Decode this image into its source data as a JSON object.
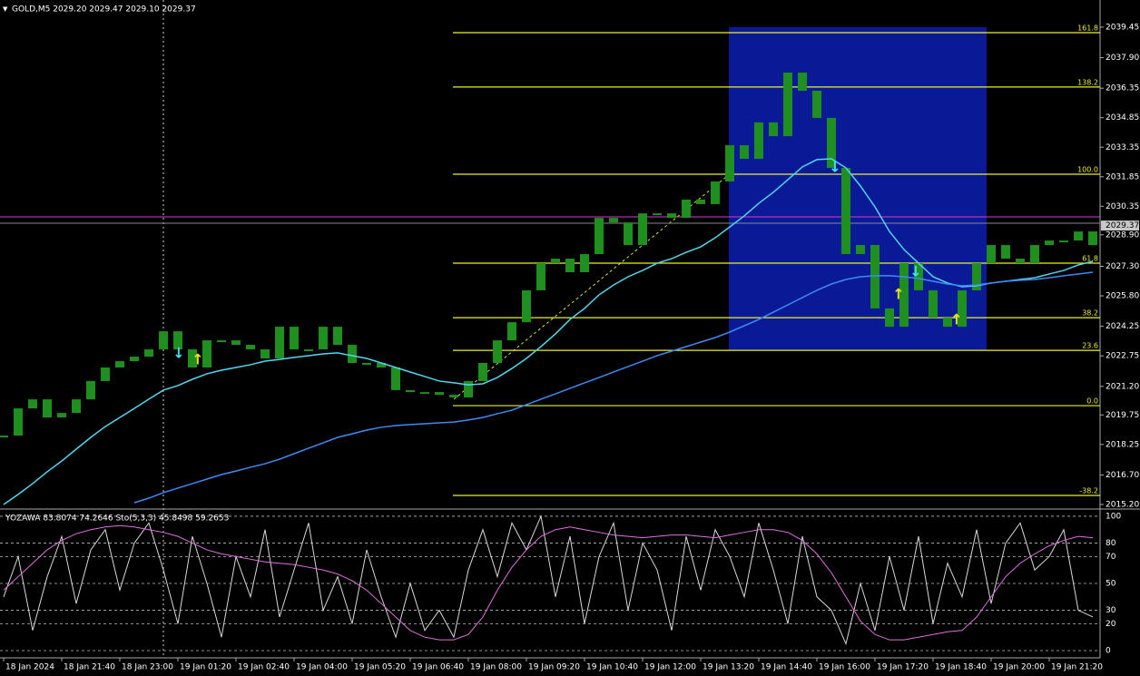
{
  "chart_data": [
    {
      "type": "candlestick",
      "title": "GOLD,M5  2029.20 2029.47 2029.10 2029.37",
      "categories": [
        "18 Jan 2024",
        null,
        null,
        null,
        "18 Jan 21:40",
        null,
        null,
        null,
        "18 Jan 23:00",
        null,
        null,
        null,
        "19 Jan 01:20",
        null,
        null,
        null,
        "19 Jan 02:40",
        null,
        null,
        null,
        "19 Jan 04:00",
        null,
        null,
        null,
        "19 Jan 05:20",
        null,
        null,
        null,
        "19 Jan 06:40",
        null,
        null,
        null,
        "19 Jan 08:00",
        null,
        null,
        null,
        "19 Jan 09:20",
        null,
        null,
        null,
        "19 Jan 10:40",
        null,
        null,
        null,
        "19 Jan 12:00",
        null,
        null,
        null,
        "19 Jan 13:20",
        null,
        null,
        null,
        "19 Jan 14:40",
        null,
        null,
        null,
        "19 Jan 16:00",
        null,
        null,
        null,
        "19 Jan 17:20",
        null,
        null,
        null,
        "19 Jan 18:40",
        null,
        null,
        null,
        "19 Jan 20:00",
        null,
        null,
        null,
        "19 Jan 21:20",
        null,
        null,
        null
      ],
      "series": [
        {
          "type": "candlestick",
          "color": "#1f8f1f",
          "values": [
            2018.7,
            2020.08,
            2020.54,
            2019.62,
            2019.85,
            2020.54,
            2021.47,
            2022.16,
            2022.48,
            2022.71,
            2023.08,
            2024.0,
            2023.08,
            2022.16,
            2023.54,
            2023.54,
            2023.31,
            2023.08,
            2022.62,
            2024.23,
            2023.08,
            2023.08,
            2024.23,
            2023.31,
            2022.39,
            2022.39,
            2022.16,
            2021.01,
            2020.91,
            2020.91,
            2020.77,
            2020.64,
            2021.47,
            2022.39,
            2023.54,
            2024.46,
            2026.08,
            2027.46,
            2027.69,
            2027.0,
            2027.92,
            2029.76,
            2029.53,
            2028.38,
            2029.99,
            2029.99,
            2029.76,
            2030.69,
            2030.46,
            2031.61,
            2033.45,
            2032.76,
            2034.61,
            2033.91,
            2037.14,
            2036.22,
            2034.84,
            2032.3,
            2027.92,
            2028.38,
            2025.16,
            2024.23,
            2027.46,
            2026.08,
            2024.69,
            2024.23,
            2026.08,
            2027.46,
            2028.38,
            2027.69,
            2027.46,
            2028.38,
            2028.61,
            2028.61,
            2029.07,
            2028.38
          ]
        },
        {
          "type": "line",
          "color": "#4fd8ee",
          "values": [
            2015.2,
            2015.71,
            2016.26,
            2016.86,
            2017.41,
            2018.01,
            2018.61,
            2019.16,
            2019.62,
            2020.08,
            2020.55,
            2021.01,
            2021.24,
            2021.56,
            2021.84,
            2022.02,
            2022.16,
            2022.3,
            2022.48,
            2022.57,
            2022.67,
            2022.76,
            2022.85,
            2022.9,
            2022.76,
            2022.62,
            2022.39,
            2022.16,
            2021.93,
            2021.7,
            2021.47,
            2021.38,
            2021.28,
            2021.33,
            2021.65,
            2022.11,
            2022.62,
            2023.22,
            2023.87,
            2024.6,
            2025.16,
            2025.85,
            2026.35,
            2026.77,
            2027.09,
            2027.46,
            2027.69,
            2028.01,
            2028.29,
            2028.75,
            2029.3,
            2029.86,
            2030.5,
            2031.06,
            2031.7,
            2032.35,
            2032.72,
            2032.76,
            2032.3,
            2031.38,
            2030.32,
            2029.07,
            2028.15,
            2027.46,
            2026.77,
            2026.45,
            2026.26,
            2026.31,
            2026.45,
            2026.54,
            2026.63,
            2026.72,
            2026.91,
            2027.09,
            2027.37,
            2027.55
          ]
        },
        {
          "type": "line",
          "color": "#3d8af7",
          "values": [
            null,
            null,
            null,
            null,
            null,
            null,
            null,
            null,
            null,
            2015.29,
            2015.52,
            2015.8,
            2016.03,
            2016.26,
            2016.49,
            2016.72,
            2016.9,
            2017.09,
            2017.27,
            2017.5,
            2017.78,
            2018.06,
            2018.33,
            2018.61,
            2018.79,
            2018.98,
            2019.12,
            2019.21,
            2019.26,
            2019.3,
            2019.35,
            2019.39,
            2019.49,
            2019.62,
            2019.81,
            2019.99,
            2020.27,
            2020.55,
            2020.82,
            2021.1,
            2021.38,
            2021.65,
            2021.93,
            2022.21,
            2022.48,
            2022.76,
            2022.99,
            2023.22,
            2023.45,
            2023.68,
            2023.96,
            2024.28,
            2024.6,
            2024.97,
            2025.34,
            2025.71,
            2026.08,
            2026.4,
            2026.63,
            2026.77,
            2026.82,
            2026.82,
            2026.77,
            2026.68,
            2026.54,
            2026.4,
            2026.31,
            2026.35,
            2026.45,
            2026.54,
            2026.59,
            2026.63,
            2026.72,
            2026.82,
            2026.91,
            2027.0
          ]
        }
      ],
      "ylim": [
        2015.0,
        2040.83
      ],
      "yticks": [
        2039.45,
        {
          "value": 2037.9,
          "label": "2037.90"
        },
        2036.35,
        2034.85,
        2033.35,
        2031.85,
        2030.35,
        {
          "value": 2028.9,
          "label": "2028.90"
        },
        {
          "value": 2027.3,
          "label": "2027.30"
        },
        {
          "value": 2025.8,
          "label": "2025.80"
        },
        2024.25,
        2022.75,
        {
          "value": 2021.2,
          "label": "2021.20"
        },
        2019.75,
        2018.25,
        {
          "value": 2016.7,
          "label": "2016.70"
        },
        {
          "value": 2015.2,
          "label": "2015.20"
        }
      ],
      "levels": [
        {
          "value": 2039.17,
          "label": "161.8"
        },
        {
          "value": 2036.41,
          "label": "138.2"
        },
        {
          "value": 2031.98,
          "label": "100.0"
        },
        {
          "value": 2027.46,
          "label": "61.8"
        },
        {
          "value": 2024.69,
          "label": "38.2"
        },
        {
          "value": 2023.03,
          "label": "23.6"
        },
        {
          "value": 2020.22,
          "label": "0.0"
        },
        {
          "value": 2015.66,
          "label": "-38.2"
        }
      ],
      "level_color": "#f0f020",
      "current_price": 2029.37
    },
    {
      "type": "line",
      "title": "YOZAWA 83.8074 74.2646  Sto(5,3,3) 45.8498 59.2653",
      "series": [
        {
          "color": "#d8d8d8",
          "values": [
            40,
            70,
            15,
            55,
            85,
            35,
            75,
            90,
            45,
            80,
            95,
            60,
            20,
            85,
            50,
            10,
            70,
            40,
            90,
            25,
            60,
            95,
            30,
            55,
            20,
            75,
            40,
            10,
            50,
            15,
            30,
            10,
            60,
            90,
            55,
            95,
            75,
            100,
            40,
            85,
            20,
            70,
            95,
            30,
            80,
            60,
            15,
            85,
            45,
            90,
            70,
            40,
            95,
            60,
            20,
            85,
            40,
            30,
            5,
            50,
            15,
            70,
            30,
            85,
            20,
            65,
            40,
            90,
            35,
            80,
            95,
            60,
            70,
            90,
            30,
            25
          ]
        },
        {
          "color": "#e070e0",
          "values": [
            45,
            55,
            65,
            75,
            82,
            87,
            90,
            92,
            93,
            92,
            90,
            88,
            85,
            80,
            75,
            72,
            70,
            68,
            66,
            65,
            64,
            62,
            60,
            57,
            52,
            45,
            35,
            25,
            15,
            10,
            8,
            8,
            12,
            25,
            45,
            62,
            75,
            85,
            90,
            92,
            90,
            88,
            86,
            85,
            84,
            85,
            86,
            86,
            85,
            84,
            86,
            88,
            90,
            90,
            88,
            82,
            72,
            58,
            40,
            22,
            12,
            8,
            8,
            10,
            12,
            14,
            15,
            25,
            40,
            55,
            65,
            72,
            78,
            82,
            85,
            84
          ]
        }
      ],
      "ylim": [
        -5.4,
        104
      ],
      "yticks": [
        100,
        80,
        70,
        50,
        30,
        20,
        0
      ]
    }
  ]
}
